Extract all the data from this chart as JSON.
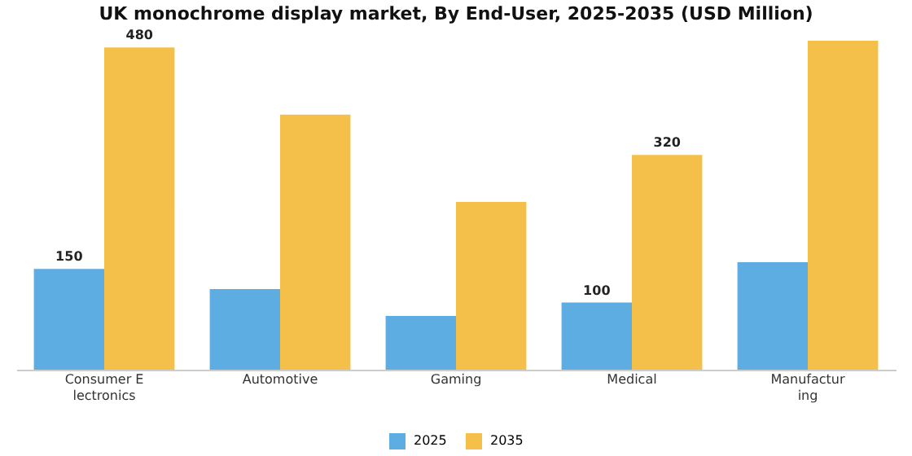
{
  "chart_data": {
    "type": "bar",
    "title": "UK monochrome display market, By End-User, 2025-2035 (USD Million)",
    "categories": [
      "Consumer E\nlectronics",
      "Automotive",
      "Gaming",
      "Medical",
      "Manufactur\ning"
    ],
    "series": [
      {
        "name": "2025",
        "color": "#5dade2",
        "values": [
          150,
          120,
          80,
          100,
          160
        ],
        "value_labels": [
          "150",
          null,
          null,
          "100",
          null
        ]
      },
      {
        "name": "2035",
        "color": "#f5c04a",
        "values": [
          480,
          380,
          250,
          320,
          490
        ],
        "value_labels": [
          "480",
          null,
          null,
          "320",
          null
        ]
      }
    ],
    "legend": "bottom",
    "grid": false
  }
}
